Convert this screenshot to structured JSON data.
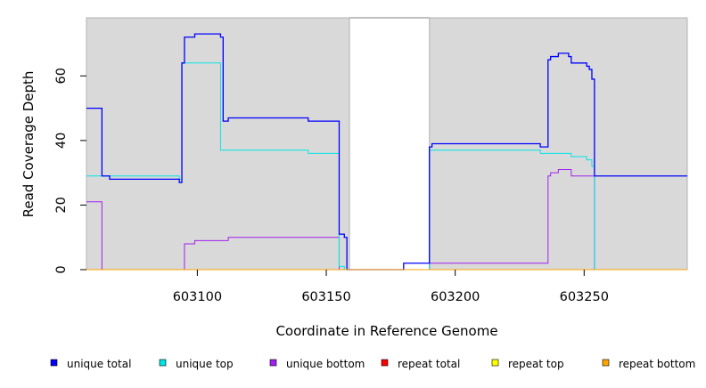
{
  "chart_data": {
    "type": "line",
    "title": "",
    "xlabel": "Coordinate in Reference Genome",
    "ylabel": "Read Coverage Depth",
    "xlim": [
      603057,
      603290
    ],
    "ylim": [
      0,
      78
    ],
    "x_ticks": [
      603100,
      603150,
      603200,
      603250
    ],
    "y_ticks": [
      0,
      20,
      40,
      60
    ],
    "shaded_regions": [
      {
        "x_start": 603057,
        "x_end": 603159
      },
      {
        "x_start": 603190,
        "x_end": 603290
      }
    ],
    "shade_color": "#d9d9d9",
    "legend_position": "bottom",
    "series": [
      {
        "name": "unique total",
        "color": "#0000ff",
        "points": [
          [
            603057,
            50
          ],
          [
            603063,
            50
          ],
          [
            603063,
            29
          ],
          [
            603066,
            29
          ],
          [
            603066,
            28
          ],
          [
            603093,
            28
          ],
          [
            603093,
            27
          ],
          [
            603094,
            27
          ],
          [
            603094,
            64
          ],
          [
            603095,
            64
          ],
          [
            603095,
            72
          ],
          [
            603099,
            72
          ],
          [
            603099,
            73
          ],
          [
            603109,
            73
          ],
          [
            603109,
            72
          ],
          [
            603110,
            72
          ],
          [
            603110,
            46
          ],
          [
            603112,
            46
          ],
          [
            603112,
            47
          ],
          [
            603143,
            47
          ],
          [
            603143,
            46
          ],
          [
            603155,
            46
          ],
          [
            603155,
            11
          ],
          [
            603157,
            11
          ],
          [
            603157,
            10
          ],
          [
            603158,
            10
          ],
          [
            603158,
            0
          ],
          [
            603180,
            0
          ],
          [
            603180,
            2
          ],
          [
            603190,
            2
          ],
          [
            603190,
            38
          ],
          [
            603191,
            38
          ],
          [
            603191,
            39
          ],
          [
            603233,
            39
          ],
          [
            603233,
            38
          ],
          [
            603236,
            38
          ],
          [
            603236,
            65
          ],
          [
            603237,
            65
          ],
          [
            603237,
            66
          ],
          [
            603240,
            66
          ],
          [
            603240,
            67
          ],
          [
            603244,
            67
          ],
          [
            603244,
            66
          ],
          [
            603245,
            66
          ],
          [
            603245,
            64
          ],
          [
            603251,
            64
          ],
          [
            603251,
            63
          ],
          [
            603252,
            63
          ],
          [
            603252,
            62
          ],
          [
            603253,
            62
          ],
          [
            603253,
            59
          ],
          [
            603254,
            59
          ],
          [
            603254,
            29
          ],
          [
            603290,
            29
          ]
        ]
      },
      {
        "name": "unique top",
        "color": "#00e5e5",
        "points": [
          [
            603057,
            29
          ],
          [
            603093,
            29
          ],
          [
            603093,
            28
          ],
          [
            603094,
            28
          ],
          [
            603094,
            64
          ],
          [
            603109,
            64
          ],
          [
            603109,
            37
          ],
          [
            603143,
            37
          ],
          [
            603143,
            36
          ],
          [
            603155,
            36
          ],
          [
            603155,
            1
          ],
          [
            603157,
            1
          ],
          [
            603157,
            0
          ],
          [
            603190,
            0
          ],
          [
            603190,
            37
          ],
          [
            603233,
            37
          ],
          [
            603233,
            36
          ],
          [
            603245,
            36
          ],
          [
            603245,
            35
          ],
          [
            603251,
            35
          ],
          [
            603251,
            34
          ],
          [
            603253,
            34
          ],
          [
            603253,
            32
          ],
          [
            603254,
            32
          ],
          [
            603254,
            0
          ],
          [
            603290,
            0
          ]
        ]
      },
      {
        "name": "unique bottom",
        "color": "#a020f0",
        "points": [
          [
            603057,
            21
          ],
          [
            603063,
            21
          ],
          [
            603063,
            0
          ],
          [
            603095,
            0
          ],
          [
            603095,
            8
          ],
          [
            603099,
            8
          ],
          [
            603099,
            9
          ],
          [
            603112,
            9
          ],
          [
            603112,
            10
          ],
          [
            603155,
            10
          ],
          [
            603155,
            0
          ],
          [
            603190,
            0
          ],
          [
            603190,
            2
          ],
          [
            603236,
            2
          ],
          [
            603236,
            29
          ],
          [
            603237,
            29
          ],
          [
            603237,
            30
          ],
          [
            603240,
            30
          ],
          [
            603240,
            31
          ],
          [
            603245,
            31
          ],
          [
            603245,
            29
          ],
          [
            603254,
            29
          ],
          [
            603254,
            0
          ],
          [
            603290,
            0
          ]
        ]
      },
      {
        "name": "repeat total",
        "color": "#ff0000",
        "points": [
          [
            603057,
            0
          ],
          [
            603158,
            0
          ],
          [
            603190,
            0
          ],
          [
            603290,
            0
          ]
        ]
      },
      {
        "name": "repeat top",
        "color": "#ffff00",
        "points": [
          [
            603057,
            0
          ],
          [
            603158,
            0
          ],
          [
            603190,
            0
          ],
          [
            603290,
            0
          ]
        ]
      },
      {
        "name": "repeat bottom",
        "color": "#ffa500",
        "points": [
          [
            603057,
            0
          ],
          [
            603158,
            0
          ],
          [
            603190,
            0
          ],
          [
            603290,
            0
          ]
        ]
      }
    ]
  }
}
